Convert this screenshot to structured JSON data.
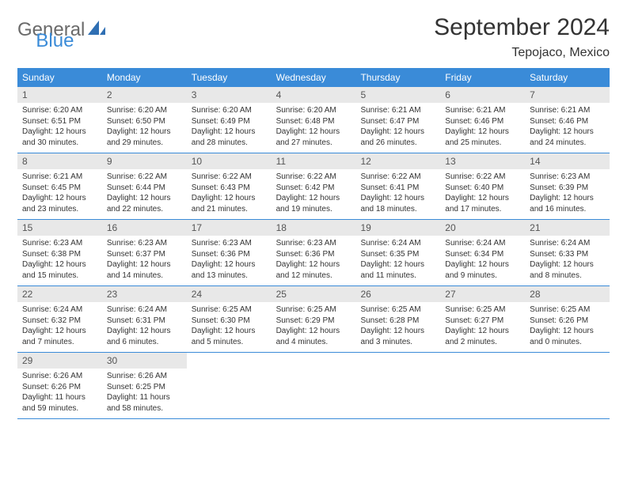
{
  "logo": {
    "text1": "General",
    "text2": "Blue"
  },
  "title": "September 2024",
  "location": "Tepojaco, Mexico",
  "colors": {
    "header_bg": "#3a8bd8",
    "header_text": "#ffffff",
    "daynum_bg": "#e8e8e8",
    "daynum_text": "#555555",
    "body_text": "#333333",
    "logo_gray": "#6a6a6a",
    "logo_blue": "#3a8bd8",
    "divider": "#3a8bd8"
  },
  "weekdays": [
    "Sunday",
    "Monday",
    "Tuesday",
    "Wednesday",
    "Thursday",
    "Friday",
    "Saturday"
  ],
  "days": [
    {
      "n": 1,
      "sr": "6:20 AM",
      "ss": "6:51 PM",
      "dl": "12 hours and 30 minutes."
    },
    {
      "n": 2,
      "sr": "6:20 AM",
      "ss": "6:50 PM",
      "dl": "12 hours and 29 minutes."
    },
    {
      "n": 3,
      "sr": "6:20 AM",
      "ss": "6:49 PM",
      "dl": "12 hours and 28 minutes."
    },
    {
      "n": 4,
      "sr": "6:20 AM",
      "ss": "6:48 PM",
      "dl": "12 hours and 27 minutes."
    },
    {
      "n": 5,
      "sr": "6:21 AM",
      "ss": "6:47 PM",
      "dl": "12 hours and 26 minutes."
    },
    {
      "n": 6,
      "sr": "6:21 AM",
      "ss": "6:46 PM",
      "dl": "12 hours and 25 minutes."
    },
    {
      "n": 7,
      "sr": "6:21 AM",
      "ss": "6:46 PM",
      "dl": "12 hours and 24 minutes."
    },
    {
      "n": 8,
      "sr": "6:21 AM",
      "ss": "6:45 PM",
      "dl": "12 hours and 23 minutes."
    },
    {
      "n": 9,
      "sr": "6:22 AM",
      "ss": "6:44 PM",
      "dl": "12 hours and 22 minutes."
    },
    {
      "n": 10,
      "sr": "6:22 AM",
      "ss": "6:43 PM",
      "dl": "12 hours and 21 minutes."
    },
    {
      "n": 11,
      "sr": "6:22 AM",
      "ss": "6:42 PM",
      "dl": "12 hours and 19 minutes."
    },
    {
      "n": 12,
      "sr": "6:22 AM",
      "ss": "6:41 PM",
      "dl": "12 hours and 18 minutes."
    },
    {
      "n": 13,
      "sr": "6:22 AM",
      "ss": "6:40 PM",
      "dl": "12 hours and 17 minutes."
    },
    {
      "n": 14,
      "sr": "6:23 AM",
      "ss": "6:39 PM",
      "dl": "12 hours and 16 minutes."
    },
    {
      "n": 15,
      "sr": "6:23 AM",
      "ss": "6:38 PM",
      "dl": "12 hours and 15 minutes."
    },
    {
      "n": 16,
      "sr": "6:23 AM",
      "ss": "6:37 PM",
      "dl": "12 hours and 14 minutes."
    },
    {
      "n": 17,
      "sr": "6:23 AM",
      "ss": "6:36 PM",
      "dl": "12 hours and 13 minutes."
    },
    {
      "n": 18,
      "sr": "6:23 AM",
      "ss": "6:36 PM",
      "dl": "12 hours and 12 minutes."
    },
    {
      "n": 19,
      "sr": "6:24 AM",
      "ss": "6:35 PM",
      "dl": "12 hours and 11 minutes."
    },
    {
      "n": 20,
      "sr": "6:24 AM",
      "ss": "6:34 PM",
      "dl": "12 hours and 9 minutes."
    },
    {
      "n": 21,
      "sr": "6:24 AM",
      "ss": "6:33 PM",
      "dl": "12 hours and 8 minutes."
    },
    {
      "n": 22,
      "sr": "6:24 AM",
      "ss": "6:32 PM",
      "dl": "12 hours and 7 minutes."
    },
    {
      "n": 23,
      "sr": "6:24 AM",
      "ss": "6:31 PM",
      "dl": "12 hours and 6 minutes."
    },
    {
      "n": 24,
      "sr": "6:25 AM",
      "ss": "6:30 PM",
      "dl": "12 hours and 5 minutes."
    },
    {
      "n": 25,
      "sr": "6:25 AM",
      "ss": "6:29 PM",
      "dl": "12 hours and 4 minutes."
    },
    {
      "n": 26,
      "sr": "6:25 AM",
      "ss": "6:28 PM",
      "dl": "12 hours and 3 minutes."
    },
    {
      "n": 27,
      "sr": "6:25 AM",
      "ss": "6:27 PM",
      "dl": "12 hours and 2 minutes."
    },
    {
      "n": 28,
      "sr": "6:25 AM",
      "ss": "6:26 PM",
      "dl": "12 hours and 0 minutes."
    },
    {
      "n": 29,
      "sr": "6:26 AM",
      "ss": "6:26 PM",
      "dl": "11 hours and 59 minutes."
    },
    {
      "n": 30,
      "sr": "6:26 AM",
      "ss": "6:25 PM",
      "dl": "11 hours and 58 minutes."
    }
  ],
  "labels": {
    "sunrise": "Sunrise:",
    "sunset": "Sunset:",
    "daylight": "Daylight:"
  },
  "layout": {
    "start_weekday": 0,
    "total_cells": 35
  }
}
